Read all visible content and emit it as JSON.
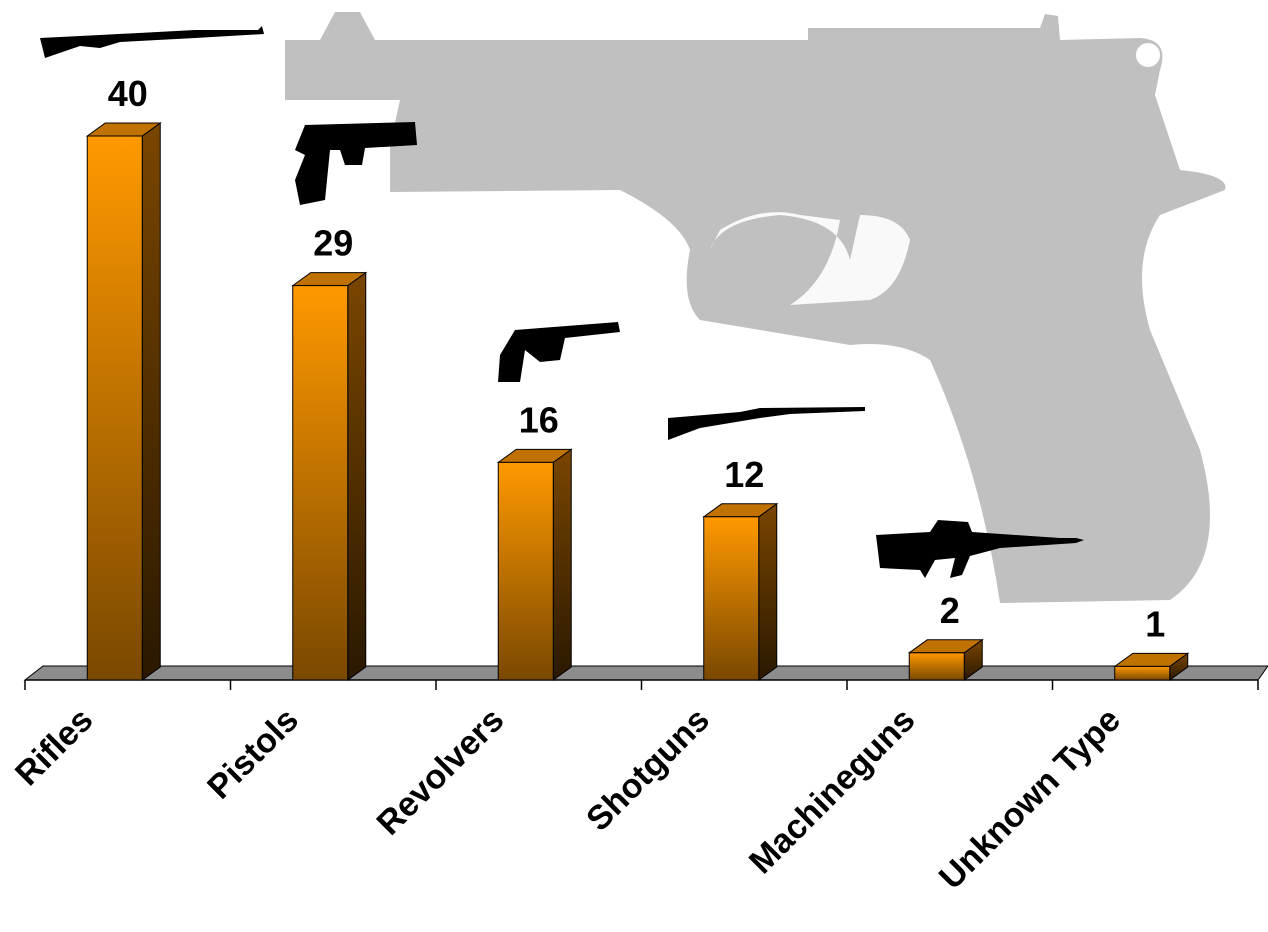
{
  "chart_data": {
    "type": "bar",
    "categories": [
      "Rifles",
      "Pistols",
      "Revolvers",
      "Shotguns",
      "Machineguns",
      "Unknown Type"
    ],
    "values": [
      40,
      29,
      16,
      12,
      2,
      1
    ],
    "color": "#ff9900"
  }
}
